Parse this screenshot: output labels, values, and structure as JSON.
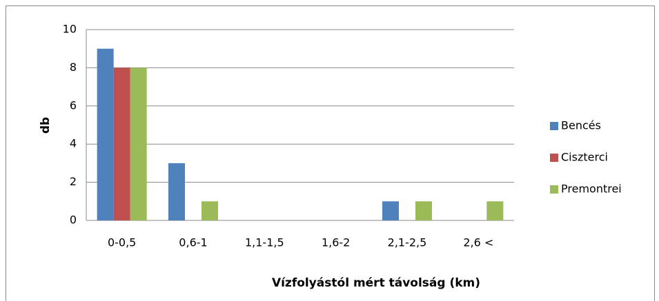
{
  "chart_data": {
    "type": "bar",
    "y_label": "db",
    "x_label": "Vízfolyástól mért távolság (km)",
    "categories": [
      "0-0,5",
      "0,6-1",
      "1,1-1,5",
      "1,6-2",
      "2,1-2,5",
      "2,6 <"
    ],
    "series": [
      {
        "name": "Bencés",
        "color": "#4f81bd",
        "values": [
          9,
          3,
          0,
          0,
          1,
          0
        ]
      },
      {
        "name": "Ciszterci",
        "color": "#c0504d",
        "values": [
          8,
          0,
          0,
          0,
          0,
          0
        ]
      },
      {
        "name": "Premontrei",
        "color": "#9bbb59",
        "values": [
          8,
          1,
          0,
          0,
          1,
          1
        ]
      }
    ],
    "ylim": [
      0,
      10
    ],
    "yticks": [
      0,
      2,
      4,
      6,
      8,
      10
    ],
    "grid": true,
    "legend": "right"
  }
}
